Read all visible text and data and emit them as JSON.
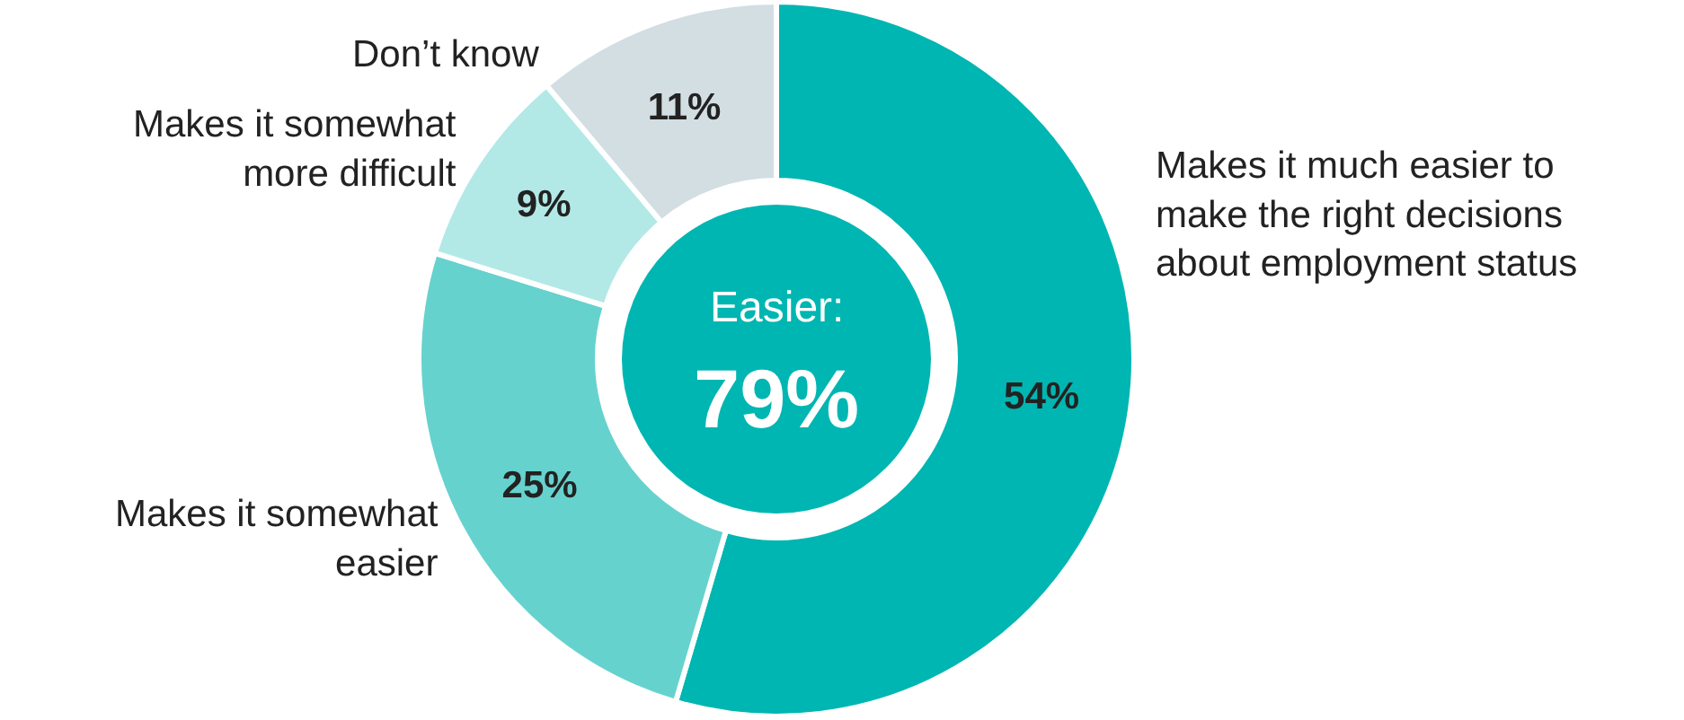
{
  "chart_data": {
    "type": "donut",
    "categories": [
      "Makes it much easier to make the right decisions about employment status",
      "Makes it somewhat easier",
      "Makes it somewhat more difficult",
      "Don’t know"
    ],
    "values": [
      54,
      25,
      9,
      11
    ],
    "value_labels": [
      "54%",
      "25%",
      "9%",
      "11%"
    ],
    "colors": [
      "#00b6b2",
      "#66d2ce",
      "#b2e9e7",
      "#d3dee3"
    ],
    "annotations": [
      "Easier:",
      "79%"
    ],
    "legend": false
  }
}
